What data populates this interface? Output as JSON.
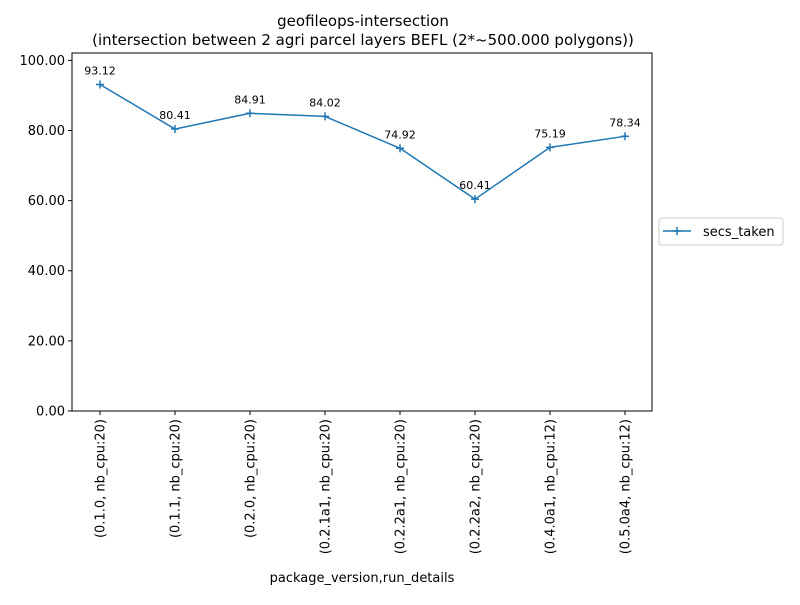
{
  "chart_data": {
    "type": "line",
    "title": "geofileops-intersection",
    "subtitle": "(intersection between 2 agri parcel layers BEFL (2*~500.000 polygons))",
    "xlabel": "package_version,run_details",
    "ylabel": "",
    "categories": [
      "(0.1.0, nb_cpu:20)",
      "(0.1.1, nb_cpu:20)",
      "(0.2.0, nb_cpu:20)",
      "(0.2.1a1, nb_cpu:20)",
      "(0.2.2a1, nb_cpu:20)",
      "(0.2.2a2, nb_cpu:20)",
      "(0.4.0a1, nb_cpu:12)",
      "(0.5.0a4, nb_cpu:12)"
    ],
    "series": [
      {
        "name": "secs_taken",
        "values": [
          93.12,
          80.41,
          84.91,
          84.02,
          74.92,
          60.41,
          75.19,
          78.34
        ],
        "data_labels": [
          "93.12",
          "80.41",
          "84.91",
          "84.02",
          "74.92",
          "60.41",
          "75.19",
          "78.34"
        ],
        "color": "#1f77b4",
        "marker": "plus"
      }
    ],
    "yticks": [
      0,
      20,
      40,
      60,
      80,
      100
    ],
    "ytick_labels": [
      "0.00",
      "20.00",
      "40.00",
      "60.00",
      "80.00",
      "100.00"
    ],
    "ylim": [
      0,
      102.1
    ],
    "grid": false,
    "legend_position": "right-outside"
  }
}
